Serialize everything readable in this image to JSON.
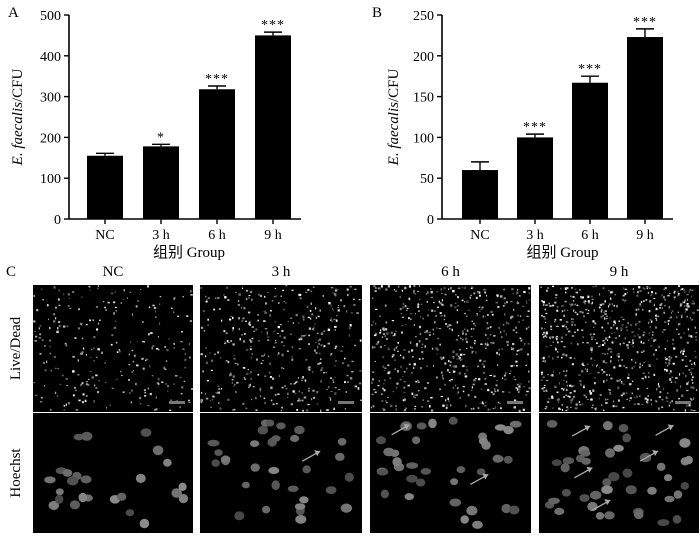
{
  "chart_data": [
    {
      "panel": "A",
      "type": "bar",
      "categories": [
        "NC",
        "3 h",
        "6 h",
        "9 h"
      ],
      "values": [
        155,
        178,
        318,
        450
      ],
      "errors": [
        6,
        5,
        8,
        8
      ],
      "significance": [
        "",
        "*",
        "***",
        "***"
      ],
      "ylim": [
        0,
        500
      ],
      "yticks": [
        0,
        100,
        200,
        300,
        400,
        500
      ],
      "ylabel_italic": "E. faecalis",
      "ylabel_rest": "/CFU",
      "xlabel": "组别 Group",
      "bar_color": "#000000",
      "grid": false
    },
    {
      "panel": "B",
      "type": "bar",
      "categories": [
        "NC",
        "3 h",
        "6 h",
        "9 h"
      ],
      "values": [
        60,
        100,
        167,
        223
      ],
      "errors": [
        10,
        4,
        8,
        10
      ],
      "significance": [
        "",
        "***",
        "***",
        "***"
      ],
      "ylim": [
        0,
        250
      ],
      "yticks": [
        0,
        50,
        100,
        150,
        200,
        250
      ],
      "ylabel_italic": "E. faecalis",
      "ylabel_rest": "/CFU",
      "xlabel": "组别 Group",
      "bar_color": "#000000",
      "grid": false
    }
  ],
  "micrographs": {
    "panel_label": "C",
    "columns": [
      "NC",
      "3 h",
      "6 h",
      "9 h"
    ],
    "rows": [
      {
        "label": "Live/Dead",
        "arrows": [
          0,
          0,
          0,
          0
        ]
      },
      {
        "label": "Hoechst",
        "arrows": [
          0,
          1,
          2,
          5
        ]
      }
    ]
  }
}
